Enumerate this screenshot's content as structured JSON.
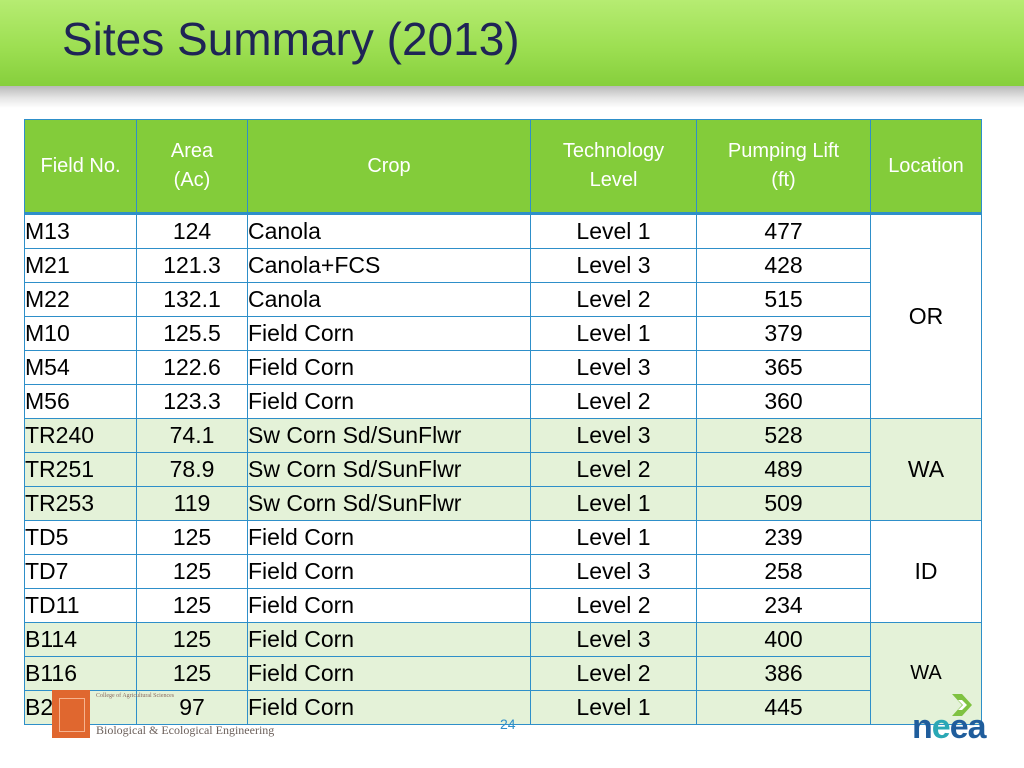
{
  "title": "Sites Summary (2013)",
  "table": {
    "headers": {
      "field_no": "Field No.",
      "area_line1": "Area",
      "area_line2": "(Ac)",
      "crop": "Crop",
      "tech_line1": "Technology",
      "tech_line2": "Level",
      "lift_line1": "Pumping Lift",
      "lift_line2": "(ft)",
      "location": "Location"
    },
    "rows": [
      {
        "field": "M13",
        "area": "124",
        "crop": "Canola",
        "level": "Level 1",
        "lift": "477"
      },
      {
        "field": "M21",
        "area": "121.3",
        "crop": "Canola+FCS",
        "level": "Level 3",
        "lift": "428"
      },
      {
        "field": "M22",
        "area": "132.1",
        "crop": "Canola",
        "level": "Level 2",
        "lift": "515"
      },
      {
        "field": "M10",
        "area": "125.5",
        "crop": "Field Corn",
        "level": "Level 1",
        "lift": "379"
      },
      {
        "field": "M54",
        "area": "122.6",
        "crop": "Field Corn",
        "level": "Level 3",
        "lift": "365"
      },
      {
        "field": "M56",
        "area": "123.3",
        "crop": "Field Corn",
        "level": "Level 2",
        "lift": "360"
      },
      {
        "field": "TR240",
        "area": "74.1",
        "crop": "Sw Corn Sd/SunFlwr",
        "level": "Level 3",
        "lift": "528"
      },
      {
        "field": "TR251",
        "area": "78.9",
        "crop": "Sw Corn Sd/SunFlwr",
        "level": "Level 2",
        "lift": "489"
      },
      {
        "field": "TR253",
        "area": "119",
        "crop": "Sw Corn Sd/SunFlwr",
        "level": "Level 1",
        "lift": "509"
      },
      {
        "field": "TD5",
        "area": "125",
        "crop": "Field Corn",
        "level": "Level 1",
        "lift": "239"
      },
      {
        "field": "TD7",
        "area": "125",
        "crop": "Field Corn",
        "level": "Level 3",
        "lift": "258"
      },
      {
        "field": "TD11",
        "area": "125",
        "crop": "Field Corn",
        "level": "Level 2",
        "lift": "234"
      },
      {
        "field": "B114",
        "area": "125",
        "crop": "Field Corn",
        "level": "Level 3",
        "lift": "400"
      },
      {
        "field": "B116",
        "area": "125",
        "crop": "Field Corn",
        "level": "Level 2",
        "lift": "386"
      },
      {
        "field": "B211",
        "area": "97",
        "crop": "Field Corn",
        "level": "Level 1",
        "lift": "445"
      }
    ],
    "locations": [
      "OR",
      "WA",
      "ID",
      "WA"
    ]
  },
  "footer": {
    "college": "College of Agricultural Sciences",
    "department": "Biological & Ecological Engineering",
    "page_number": "24",
    "neea_logo": "neea"
  },
  "colors": {
    "header_green": "#9ddf52",
    "title_navy": "#1f2456",
    "table_header_green": "#83cc3a",
    "row_alt_green": "#e4f2d8",
    "border_blue": "#2e8fc9"
  }
}
